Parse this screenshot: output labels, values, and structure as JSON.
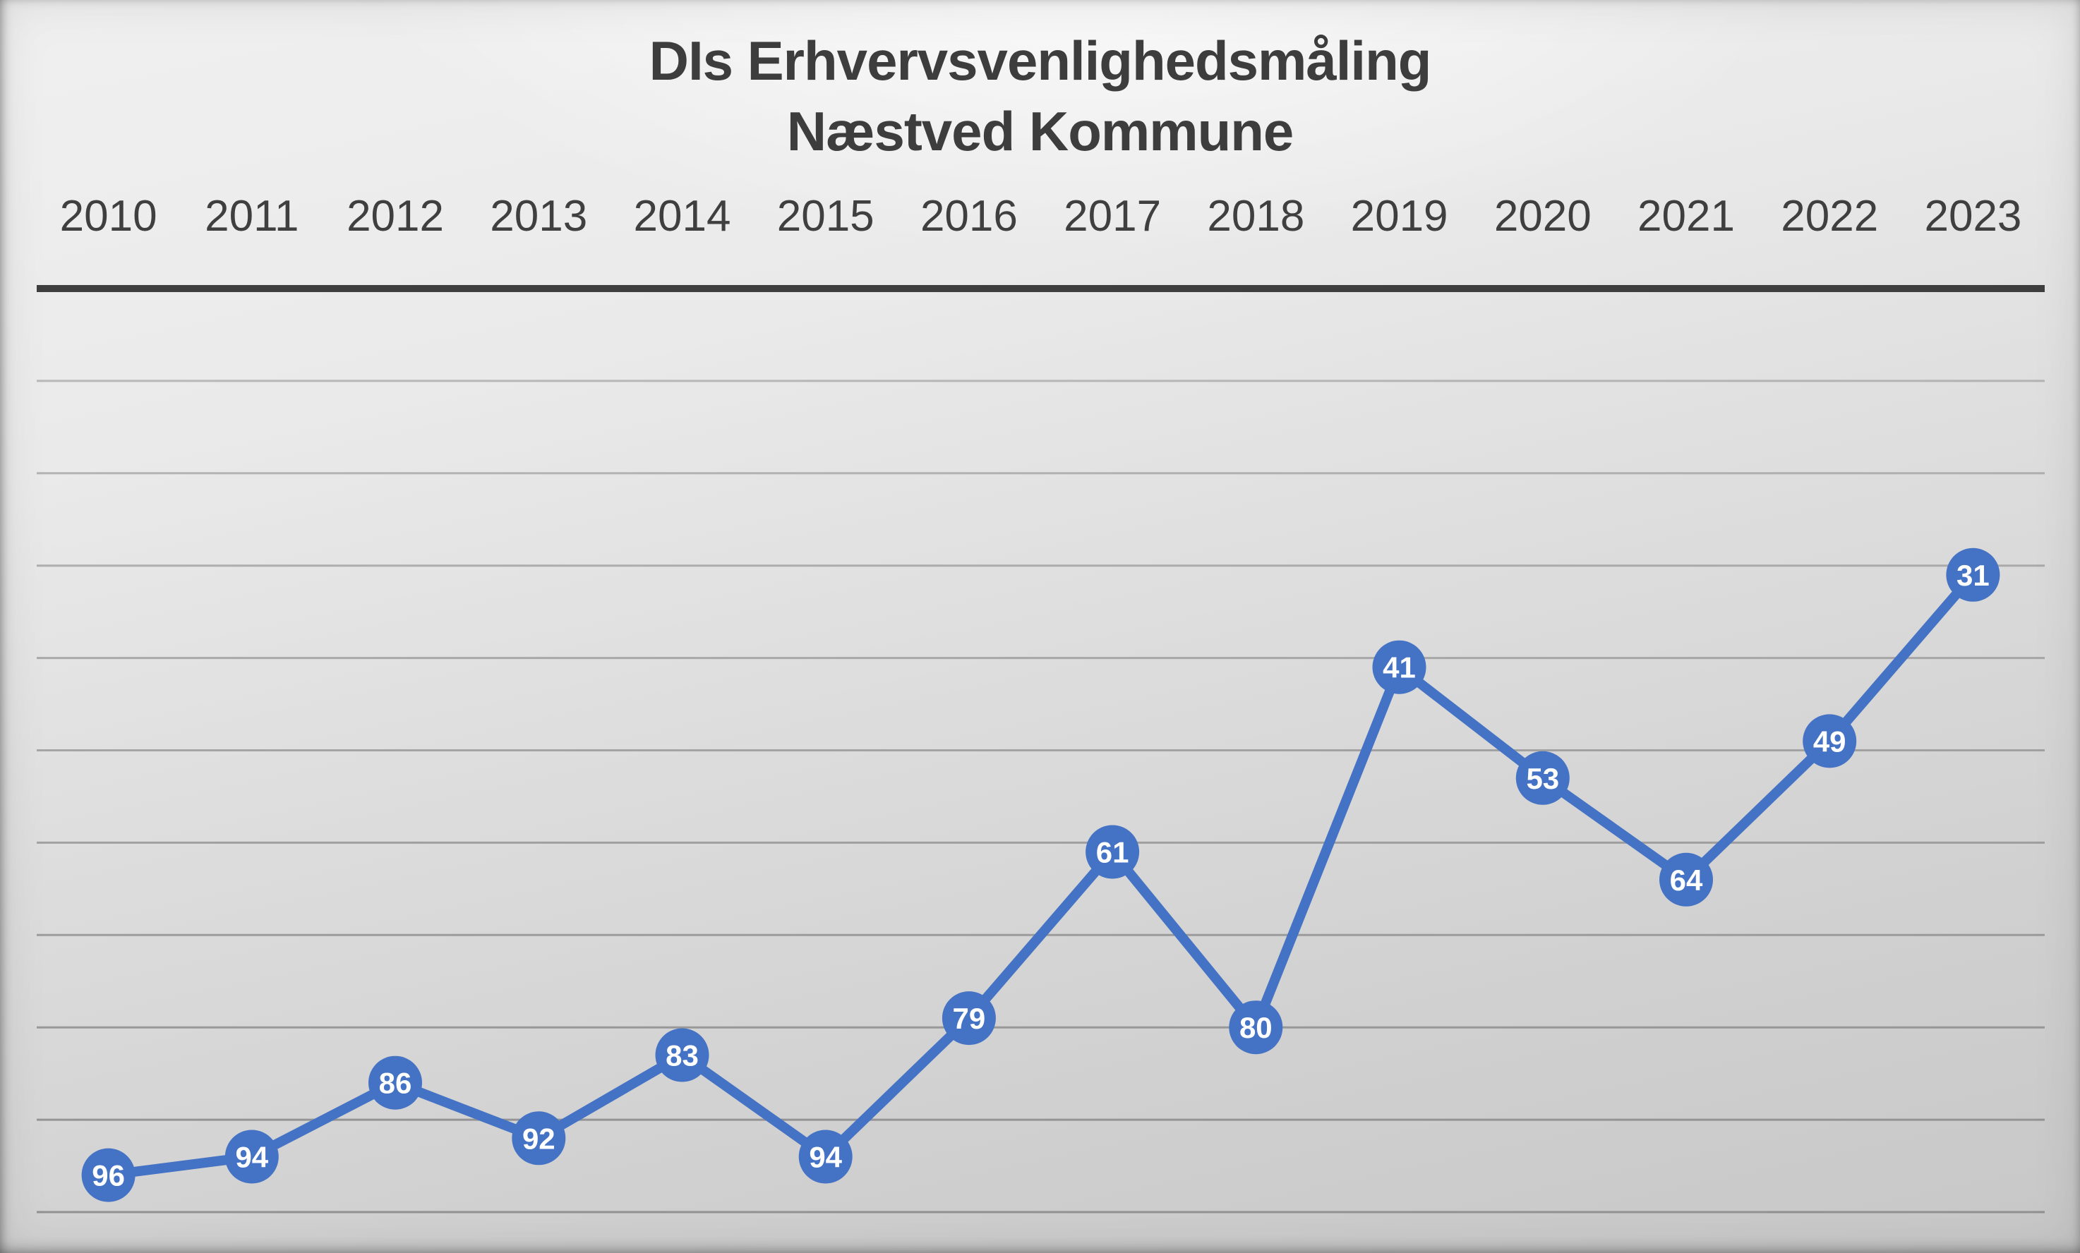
{
  "title": {
    "line1": "DIs Erhvervsvenlighedsmåling",
    "line2": "Næstved Kommune"
  },
  "colors": {
    "series_blue": "#4472C4",
    "marker_label_text": "#FFFFFF",
    "axis_line": "#3E3E3E",
    "gridline": "#8E8E8E",
    "title_text": "#3D3D3D",
    "year_text": "#3F3F3F"
  },
  "chart_data": {
    "type": "line",
    "title": "DIs Erhvervsvenlighedsmåling",
    "subtitle": "Næstved Kommune",
    "categories": [
      "2010",
      "2011",
      "2012",
      "2013",
      "2014",
      "2015",
      "2016",
      "2017",
      "2018",
      "2019",
      "2020",
      "2021",
      "2022",
      "2023"
    ],
    "values": [
      96,
      94,
      86,
      92,
      83,
      94,
      79,
      61,
      80,
      41,
      53,
      64,
      49,
      31
    ],
    "xlabel": "",
    "ylabel": "",
    "x_axis_position": "top",
    "y_axis": {
      "inverted": true,
      "min": 0,
      "max": 100,
      "gridline_step": 10,
      "tick_labels_visible": false
    },
    "grid": true,
    "legend": false,
    "data_labels": "inside-markers"
  }
}
